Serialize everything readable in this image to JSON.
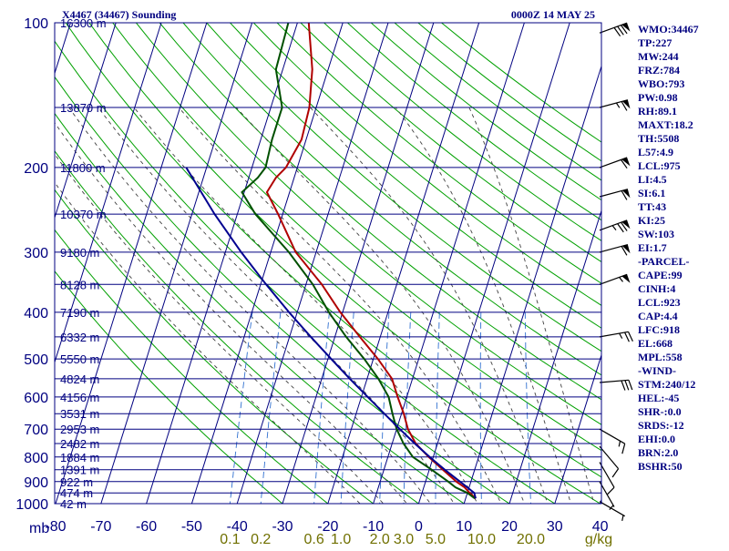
{
  "header": {
    "station": "X4467 (34467) Sounding",
    "valid_time": "0000Z 14 MAY 25"
  },
  "chart_data": {
    "type": "skew-t",
    "pressure_axis_label": "mb",
    "pressure_levels": [
      100,
      200,
      300,
      400,
      500,
      600,
      700,
      800,
      900,
      1000
    ],
    "temperature_ticks": [
      -80,
      -70,
      -60,
      -50,
      -40,
      -30,
      -20,
      -10,
      0,
      10,
      20,
      30,
      40
    ],
    "mixing_ratio_ticks": [
      "0.1",
      "0.2",
      "0.6",
      "1.0",
      "2.0",
      "3.0",
      "5.0",
      "10.0",
      "20.0"
    ],
    "mixing_ratio_unit": "g/kg",
    "height_labels": [
      {
        "p": 100,
        "text": "16300 m"
      },
      {
        "p": 150,
        "text": "13870 m"
      },
      {
        "p": 200,
        "text": "11800 m"
      },
      {
        "p": 250,
        "text": "10370 m"
      },
      {
        "p": 300,
        "text": "9180 m"
      },
      {
        "p": 350,
        "text": "8128 m"
      },
      {
        "p": 400,
        "text": "7190 m"
      },
      {
        "p": 450,
        "text": "6332 m"
      },
      {
        "p": 500,
        "text": "5550 m"
      },
      {
        "p": 550,
        "text": "4824 m"
      },
      {
        "p": 600,
        "text": "4156 m"
      },
      {
        "p": 650,
        "text": "3531 m"
      },
      {
        "p": 700,
        "text": "2953 m"
      },
      {
        "p": 750,
        "text": "2482 m"
      },
      {
        "p": 800,
        "text": "1884 m"
      },
      {
        "p": 850,
        "text": "1391 m"
      },
      {
        "p": 900,
        "text": "922 m"
      },
      {
        "p": 950,
        "text": "474 m"
      },
      {
        "p": 1000,
        "text": "42 m"
      }
    ],
    "series": [
      {
        "name": "Temperature",
        "color": "#b00000",
        "points": [
          [
            975,
            12.2
          ],
          [
            950,
            10.5
          ],
          [
            925,
            9.0
          ],
          [
            900,
            6.8
          ],
          [
            850,
            3.0
          ],
          [
            800,
            -1.0
          ],
          [
            750,
            -4.8
          ],
          [
            700,
            -7.5
          ],
          [
            650,
            -9.5
          ],
          [
            600,
            -12.0
          ],
          [
            550,
            -14.5
          ],
          [
            500,
            -19.0
          ],
          [
            450,
            -24.5
          ],
          [
            400,
            -30.5
          ],
          [
            350,
            -36.5
          ],
          [
            300,
            -44.5
          ],
          [
            250,
            -51.0
          ],
          [
            225,
            -55.0
          ],
          [
            210,
            -54.0
          ],
          [
            200,
            -52.5
          ],
          [
            175,
            -51.0
          ],
          [
            150,
            -51.5
          ],
          [
            125,
            -53.5
          ],
          [
            100,
            -57.5
          ]
        ]
      },
      {
        "name": "Dewpoint",
        "color": "#005000",
        "points": [
          [
            975,
            12.0
          ],
          [
            950,
            10.0
          ],
          [
            925,
            7.0
          ],
          [
            900,
            5.0
          ],
          [
            850,
            0.5
          ],
          [
            800,
            -4.5
          ],
          [
            750,
            -7.5
          ],
          [
            700,
            -10.0
          ],
          [
            650,
            -12.0
          ],
          [
            600,
            -14.0
          ],
          [
            550,
            -17.5
          ],
          [
            500,
            -22.0
          ],
          [
            450,
            -27.5
          ],
          [
            400,
            -33.0
          ],
          [
            350,
            -38.5
          ],
          [
            300,
            -46.0
          ],
          [
            250,
            -56.0
          ],
          [
            225,
            -60.5
          ],
          [
            210,
            -58.0
          ],
          [
            200,
            -57.0
          ],
          [
            175,
            -57.5
          ],
          [
            150,
            -57.5
          ],
          [
            125,
            -61.5
          ],
          [
            100,
            -62.0
          ]
        ]
      },
      {
        "name": "Parcel",
        "color": "#000090",
        "points": [
          [
            975,
            12.2
          ],
          [
            950,
            11.5
          ],
          [
            925,
            9.6
          ],
          [
            900,
            7.6
          ],
          [
            850,
            3.4
          ],
          [
            800,
            -0.8
          ],
          [
            750,
            -5.0
          ],
          [
            700,
            -9.3
          ],
          [
            650,
            -13.8
          ],
          [
            600,
            -18.6
          ],
          [
            550,
            -23.8
          ],
          [
            500,
            -29.3
          ],
          [
            450,
            -35.3
          ],
          [
            400,
            -41.8
          ],
          [
            350,
            -48.8
          ],
          [
            300,
            -56.5
          ],
          [
            250,
            -65.0
          ],
          [
            200,
            -74.5
          ]
        ]
      }
    ]
  },
  "wind_barbs": [
    {
      "p": 105,
      "dir": 250,
      "speed": 80
    },
    {
      "p": 150,
      "dir": 255,
      "speed": 65
    },
    {
      "p": 200,
      "dir": 250,
      "speed": 60
    },
    {
      "p": 230,
      "dir": 255,
      "speed": 60
    },
    {
      "p": 270,
      "dir": 250,
      "speed": 75
    },
    {
      "p": 300,
      "dir": 255,
      "speed": 60
    },
    {
      "p": 350,
      "dir": 250,
      "speed": 55
    },
    {
      "p": 450,
      "dir": 260,
      "speed": 25
    },
    {
      "p": 560,
      "dir": 265,
      "speed": 30
    },
    {
      "p": 700,
      "dir": 300,
      "speed": 15
    },
    {
      "p": 760,
      "dir": 320,
      "speed": 10
    },
    {
      "p": 820,
      "dir": 330,
      "speed": 10
    },
    {
      "p": 900,
      "dir": 330,
      "speed": 5
    },
    {
      "p": 990,
      "dir": 300,
      "speed": 5
    }
  ],
  "indices": [
    "WMO:34467",
    "TP:227",
    "MW:244",
    "FRZ:784",
    "WBO:793",
    "PW:0.98",
    "RH:89.1",
    "MAXT:18.2",
    "TH:5508",
    "L57:4.9",
    "LCL:975",
    "LI:4.5",
    "SI:6.1",
    "TT:43",
    "KI:25",
    "SW:103",
    "EI:1.7",
    "-PARCEL-",
    "CAPE:99",
    "CINH:4",
    "LCL:923",
    "CAP:4.4",
    "LFC:918",
    "EL:668",
    "MPL:558",
    "-WIND-",
    "STM:240/12",
    "HEL:-45",
    "SHR-:0.0",
    "SRDS:-12",
    "EHI:0.0",
    "BRN:2.0",
    "BSHR:50"
  ],
  "colors": {
    "frame": "#000080",
    "isotherm": "#000080",
    "dry_adiabat": "#00a000",
    "moist_adiabat": "#404040",
    "mixing_ratio": "#3070d0",
    "temperature": "#b00000",
    "dewpoint": "#005000",
    "parcel": "#000090",
    "barb": "#000000"
  }
}
